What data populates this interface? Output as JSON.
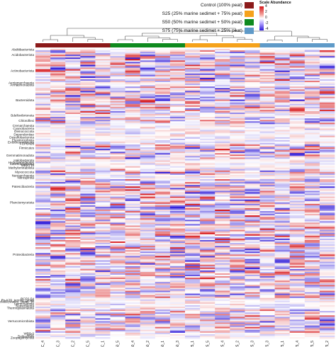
{
  "chart_data": {
    "type": "heatmap",
    "title": "",
    "xlabel": "",
    "ylabel": "",
    "legend": {
      "position": "top",
      "groups": [
        {
          "label": "Control (100% peat)",
          "color": "#8b1a1a"
        },
        {
          "label": "S25 (25% marine sedimet + 75% peat)",
          "color": "#f5a21b"
        },
        {
          "label": "S50 (50% marine sedimet + 50% peat)",
          "color": "#0f8a1e"
        },
        {
          "label": "S75 (75% marine sedimet + 25% peat)",
          "color": "#5f9ac8"
        }
      ]
    },
    "color_scale": {
      "title": "Scale Abundance",
      "ticks": [
        "4",
        "2",
        "0",
        "-2",
        "-4"
      ],
      "range": [
        -4,
        4
      ],
      "colors": {
        "high": "#d7191c",
        "mid": "#ffffff",
        "low": "#2d19d8"
      }
    },
    "group_bar": [
      "#8b1a1a",
      "#0f8a1e",
      "#f5a21b",
      "#5f9ac8"
    ],
    "samples": [
      "SC_4",
      "SC_3",
      "SC_2",
      "SC_5",
      "SC_1",
      "S50_5",
      "S50_4",
      "S50_2",
      "S50_1",
      "S50_3",
      "S25_1",
      "S25_5",
      "S25_4",
      "S25_2",
      "S25_3",
      "S75_3",
      "S75_1",
      "S75_4",
      "S75_5",
      "S75_2"
    ],
    "phyla": [
      {
        "name": "Abditibacteriota",
        "rows": 1
      },
      {
        "name": "Acidobacteriota",
        "rows": 6
      },
      {
        "name": "Actinobacteriota",
        "rows": 16
      },
      {
        "name": "Aenigmarchaeota",
        "rows": 1
      },
      {
        "name": "Armatimonadota",
        "rows": 2
      },
      {
        "name": "Bacteroidota",
        "rows": 19
      },
      {
        "name": "Bdellovibrionota",
        "rows": 2
      },
      {
        "name": "Chloroflexi",
        "rows": 5
      },
      {
        "name": "Crenarchaeota",
        "rows": 2
      },
      {
        "name": "Cyanobacteria",
        "rows": 2
      },
      {
        "name": "Deinococcota",
        "rows": 2
      },
      {
        "name": "Dependentiae",
        "rows": 2
      },
      {
        "name": "Desulfobacterota",
        "rows": 2
      },
      {
        "name": "Elusimicrobiota",
        "rows": 2
      },
      {
        "name": "Entotheonellaeota",
        "rows": 1
      },
      {
        "name": "FCPU426",
        "rows": 1
      },
      {
        "name": "Firmicutes",
        "rows": 5
      },
      {
        "name": "Gemmatimonadota",
        "rows": 5
      },
      {
        "name": "Halobacterota",
        "rows": 2
      },
      {
        "name": "Hydrogenedentes",
        "rows": 1
      },
      {
        "name": "Latescibacterota",
        "rows": 1
      },
      {
        "name": "MBNT15",
        "rows": 1
      },
      {
        "name": "Methylomirabilota",
        "rows": 2
      },
      {
        "name": "Myxococcota",
        "rows": 4
      },
      {
        "name": "Nanoarchaeota",
        "rows": 1
      },
      {
        "name": "Nitrospirota",
        "rows": 2
      },
      {
        "name": "Patescibacteria",
        "rows": 10
      },
      {
        "name": "Planctomycetota",
        "rows": 12
      },
      {
        "name": "Proteobacteria",
        "rows": 60
      },
      {
        "name": "RCP2-54",
        "rows": 1
      },
      {
        "name": "Rs-K70_termite_group",
        "rows": 1
      },
      {
        "name": "SAR324_clade(Marine_group_B)",
        "rows": 1
      },
      {
        "name": "Spirochaetota",
        "rows": 2
      },
      {
        "name": "Sumerlaeota",
        "rows": 1
      },
      {
        "name": "Thermoplasmatota",
        "rows": 2
      },
      {
        "name": "Verrucomicrobiota",
        "rows": 16
      },
      {
        "name": "WPS-2",
        "rows": 1
      },
      {
        "name": "WS2",
        "rows": 1
      },
      {
        "name": "Zixibacteria",
        "rows": 1
      },
      {
        "name": "Zoopagomycota",
        "rows": 1
      }
    ]
  }
}
